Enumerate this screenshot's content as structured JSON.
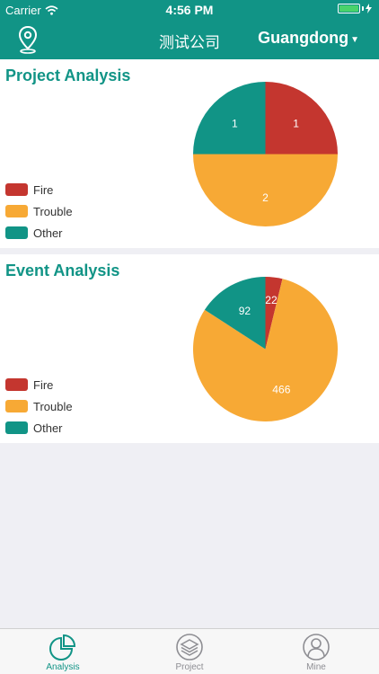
{
  "status_bar": {
    "carrier": "Carrier",
    "time": "4:56 PM"
  },
  "navbar": {
    "title": "测试公司",
    "region": "Guangdong"
  },
  "colors": {
    "brand": "#119486",
    "fire": "#c4362f",
    "trouble": "#f7a935",
    "other": "#119486"
  },
  "project_analysis": {
    "title": "Project Analysis",
    "legend": [
      "Fire",
      "Trouble",
      "Other"
    ],
    "chart_data": {
      "type": "pie",
      "categories": [
        "Fire",
        "Trouble",
        "Other"
      ],
      "values": [
        1,
        2,
        1
      ],
      "data_labels": [
        "1",
        "2",
        "1"
      ]
    }
  },
  "event_analysis": {
    "title": "Event Analysis",
    "legend": [
      "Fire",
      "Trouble",
      "Other"
    ],
    "chart_data": {
      "type": "pie",
      "categories": [
        "Fire",
        "Trouble",
        "Other"
      ],
      "values": [
        22,
        466,
        92
      ],
      "data_labels": [
        "22",
        "466",
        "92"
      ]
    }
  },
  "tabbar": {
    "items": [
      {
        "label": "Analysis",
        "icon": "pie-chart-icon",
        "active": true
      },
      {
        "label": "Project",
        "icon": "layers-icon",
        "active": false
      },
      {
        "label": "Mine",
        "icon": "user-icon",
        "active": false
      }
    ]
  }
}
